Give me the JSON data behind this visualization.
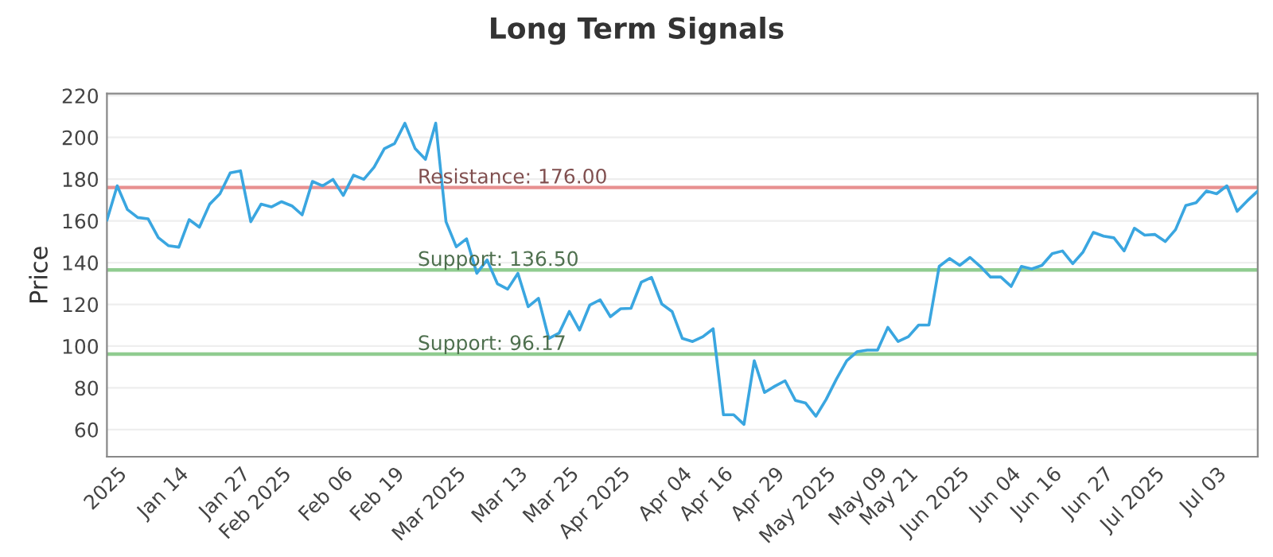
{
  "chart_data": {
    "type": "line",
    "title": "Long Term Signals",
    "ylabel": "Price",
    "categories": [
      null,
      "2025",
      null,
      null,
      null,
      null,
      null,
      "Jan 14",
      null,
      null,
      null,
      null,
      null,
      "Jan 27",
      null,
      null,
      null,
      "Feb 2025",
      null,
      null,
      null,
      null,
      null,
      "Feb 06",
      null,
      null,
      null,
      null,
      "Feb 19",
      null,
      null,
      null,
      null,
      null,
      "Mar 2025",
      null,
      null,
      null,
      null,
      null,
      "Mar 13",
      null,
      null,
      null,
      null,
      "Mar 25",
      null,
      null,
      null,
      null,
      "Apr 2025",
      null,
      null,
      null,
      null,
      null,
      "Apr 04",
      null,
      null,
      null,
      "Apr 16",
      null,
      null,
      null,
      null,
      "Apr 29",
      null,
      null,
      null,
      null,
      "May 2025",
      null,
      null,
      null,
      null,
      "May 09",
      null,
      null,
      "May 21",
      null,
      null,
      null,
      null,
      "Jun 2025",
      null,
      null,
      null,
      null,
      "Jun 04",
      null,
      null,
      null,
      "Jun 16",
      null,
      null,
      null,
      null,
      "Jun 27",
      null,
      null,
      null,
      null,
      "Jul 2025",
      null,
      null,
      null,
      null,
      null,
      "Jul 03",
      null,
      null,
      null,
      null
    ],
    "series": [
      {
        "color": "#3aa6e0",
        "values": [
          160.3,
          176.8,
          165.4,
          161.6,
          161,
          152,
          148.1,
          147.4,
          160.6,
          157,
          168,
          173,
          183,
          184,
          159.6,
          168,
          166.7,
          169.2,
          167.2,
          162.9,
          178.9,
          176.8,
          179.9,
          172.2,
          181.9,
          179.9,
          185.7,
          194.6,
          197.1,
          206.8,
          194.6,
          189.5,
          206.8,
          159.6,
          147.6,
          151.4,
          134.9,
          141.3,
          129.9,
          127.3,
          134.9,
          118.9,
          122.9,
          103.7,
          106.2,
          116.6,
          107.7,
          119.7,
          122.2,
          114.1,
          117.9,
          118.1,
          130.6,
          132.9,
          120.2,
          116.6,
          103.7,
          102.2,
          104.5,
          108.3,
          67.1,
          67.1,
          62.5,
          93,
          77.8,
          80.8,
          83.4,
          74,
          72.7,
          66.4,
          74.5,
          84.2,
          93,
          97.3,
          98.1,
          98.1,
          109,
          102.2,
          104.5,
          110.1,
          110.1,
          138.2,
          142,
          138.7,
          142.5,
          138.2,
          133.1,
          133.1,
          128.6,
          138.2,
          137,
          138.7,
          144.3,
          145.6,
          139.5,
          145.1,
          154.5,
          152.7,
          151.9,
          145.6,
          156.5,
          153.2,
          153.5,
          150.1,
          155.8,
          167.4,
          168.7,
          174.3,
          173,
          176.8,
          164.6,
          169.7,
          174.3
        ]
      }
    ],
    "ylim": [
      47,
      221
    ],
    "yticks": [
      60,
      80,
      100,
      120,
      140,
      160,
      180,
      200,
      220
    ],
    "grid": "y",
    "ref_lines": [
      {
        "axis": "y",
        "value": 176,
        "label": "Resistance: 176.00",
        "color": "#e89090"
      },
      {
        "axis": "y",
        "value": 136.5,
        "label": "Support: 136.50",
        "color": "#90cc90"
      },
      {
        "axis": "y",
        "value": 96.17,
        "label": "Support: 96.17",
        "color": "#90cc90"
      }
    ]
  }
}
